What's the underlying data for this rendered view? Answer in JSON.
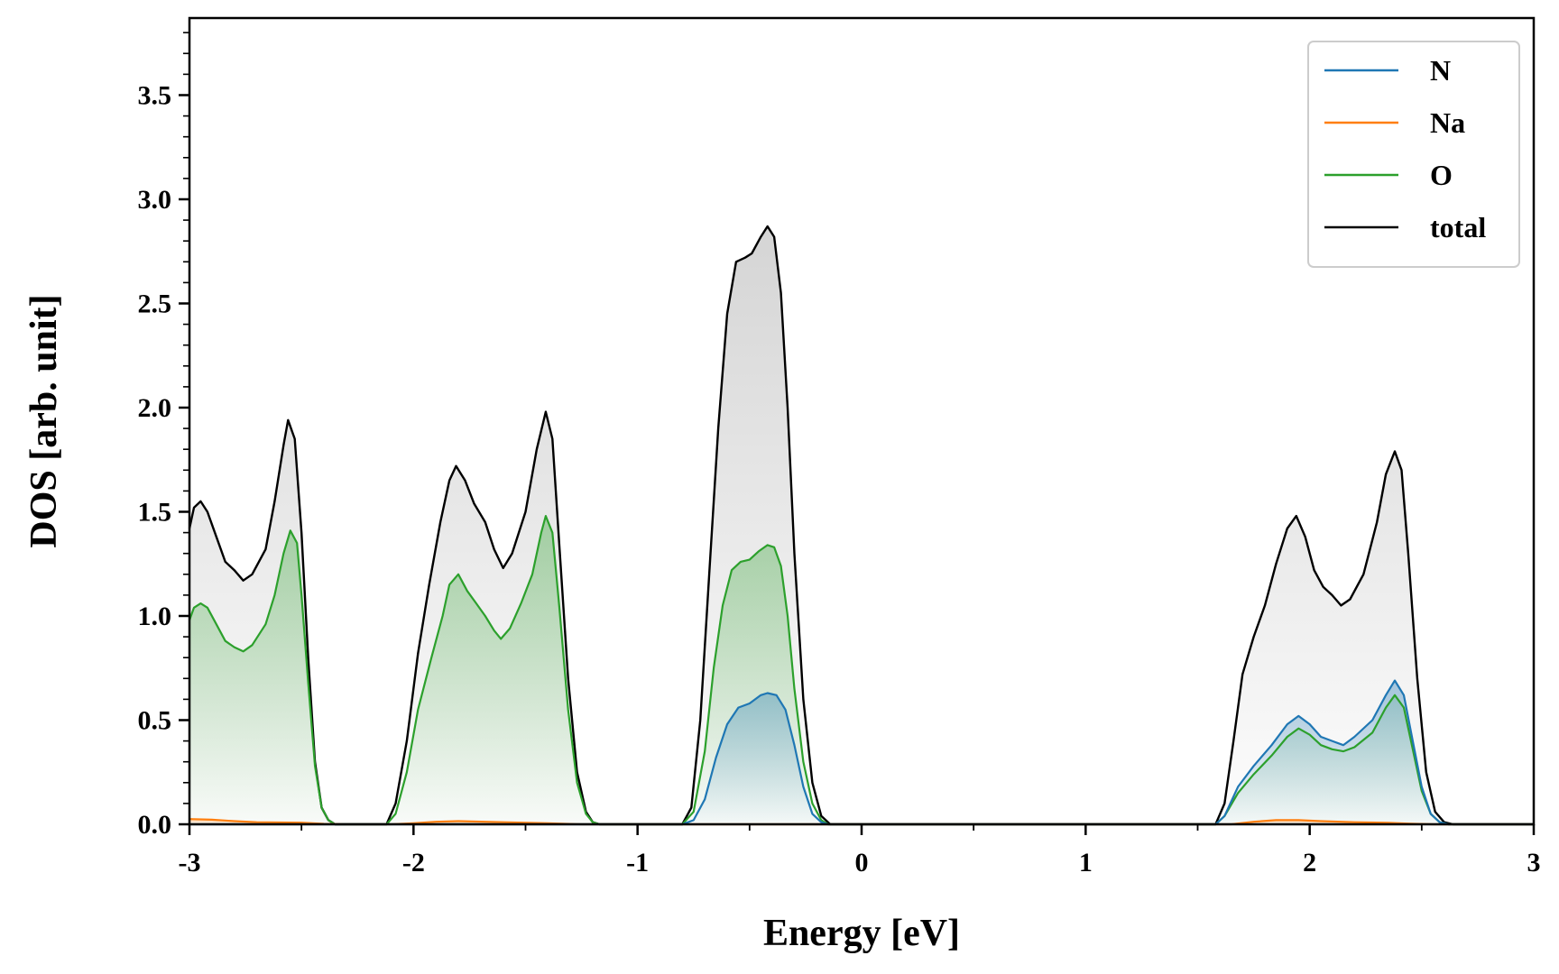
{
  "chart_data": {
    "type": "line",
    "title": "",
    "xlabel": "Energy [eV]",
    "ylabel": "DOS [arb. unit]",
    "xlim": [
      -3,
      3
    ],
    "ylim": [
      0,
      3.87
    ],
    "x_ticks": [
      -3,
      -2,
      -1,
      0,
      1,
      2,
      3
    ],
    "x_tick_labels": [
      "-3",
      "-2",
      "-1",
      "0",
      "1",
      "2",
      "3"
    ],
    "y_ticks": [
      0,
      0.5,
      1,
      1.5,
      2,
      2.5,
      3,
      3.5
    ],
    "y_tick_labels": [
      "0.0",
      "0.5",
      "1.0",
      "1.5",
      "2.0",
      "2.5",
      "3.0",
      "3.5"
    ],
    "grid": false,
    "legend_position": "top-right",
    "fill_under_curves": true,
    "series": [
      {
        "name": "N",
        "color": "#1f77b4",
        "points": [
          [
            -3.0,
            0
          ],
          [
            -0.8,
            0
          ],
          [
            -0.75,
            0.02
          ],
          [
            -0.7,
            0.12
          ],
          [
            -0.65,
            0.32
          ],
          [
            -0.6,
            0.48
          ],
          [
            -0.55,
            0.56
          ],
          [
            -0.5,
            0.58
          ],
          [
            -0.45,
            0.62
          ],
          [
            -0.42,
            0.63
          ],
          [
            -0.38,
            0.62
          ],
          [
            -0.34,
            0.55
          ],
          [
            -0.3,
            0.38
          ],
          [
            -0.26,
            0.18
          ],
          [
            -0.22,
            0.05
          ],
          [
            -0.18,
            0.01
          ],
          [
            -0.15,
            0
          ],
          [
            1.58,
            0
          ],
          [
            1.62,
            0.04
          ],
          [
            1.68,
            0.18
          ],
          [
            1.75,
            0.28
          ],
          [
            1.83,
            0.38
          ],
          [
            1.9,
            0.48
          ],
          [
            1.95,
            0.52
          ],
          [
            2.0,
            0.48
          ],
          [
            2.05,
            0.42
          ],
          [
            2.1,
            0.4
          ],
          [
            2.15,
            0.38
          ],
          [
            2.2,
            0.42
          ],
          [
            2.28,
            0.5
          ],
          [
            2.34,
            0.62
          ],
          [
            2.38,
            0.69
          ],
          [
            2.42,
            0.62
          ],
          [
            2.46,
            0.4
          ],
          [
            2.5,
            0.18
          ],
          [
            2.54,
            0.05
          ],
          [
            2.58,
            0.01
          ],
          [
            2.62,
            0
          ],
          [
            3.0,
            0
          ]
        ]
      },
      {
        "name": "Na",
        "color": "#ff7f0e",
        "points": [
          [
            -3.0,
            0.025
          ],
          [
            -2.9,
            0.022
          ],
          [
            -2.8,
            0.015
          ],
          [
            -2.7,
            0.01
          ],
          [
            -2.5,
            0.008
          ],
          [
            -2.4,
            0.002
          ],
          [
            -2.3,
            0
          ],
          [
            -2.1,
            0
          ],
          [
            -2.0,
            0.005
          ],
          [
            -1.9,
            0.012
          ],
          [
            -1.8,
            0.015
          ],
          [
            -1.6,
            0.01
          ],
          [
            -1.4,
            0.005
          ],
          [
            -1.25,
            0
          ],
          [
            1.65,
            0
          ],
          [
            1.75,
            0.012
          ],
          [
            1.85,
            0.02
          ],
          [
            1.95,
            0.02
          ],
          [
            2.05,
            0.015
          ],
          [
            2.2,
            0.01
          ],
          [
            2.35,
            0.007
          ],
          [
            2.45,
            0.003
          ],
          [
            2.55,
            0
          ],
          [
            3.0,
            0
          ]
        ]
      },
      {
        "name": "O",
        "color": "#2ca02c",
        "points": [
          [
            -3.0,
            0.98
          ],
          [
            -2.98,
            1.04
          ],
          [
            -2.95,
            1.06
          ],
          [
            -2.92,
            1.04
          ],
          [
            -2.88,
            0.96
          ],
          [
            -2.84,
            0.88
          ],
          [
            -2.8,
            0.85
          ],
          [
            -2.76,
            0.83
          ],
          [
            -2.72,
            0.86
          ],
          [
            -2.66,
            0.96
          ],
          [
            -2.62,
            1.1
          ],
          [
            -2.58,
            1.3
          ],
          [
            -2.55,
            1.41
          ],
          [
            -2.52,
            1.35
          ],
          [
            -2.5,
            1.1
          ],
          [
            -2.47,
            0.68
          ],
          [
            -2.44,
            0.28
          ],
          [
            -2.41,
            0.08
          ],
          [
            -2.38,
            0.02
          ],
          [
            -2.35,
            0
          ],
          [
            -2.12,
            0
          ],
          [
            -2.08,
            0.05
          ],
          [
            -2.03,
            0.25
          ],
          [
            -1.98,
            0.55
          ],
          [
            -1.92,
            0.8
          ],
          [
            -1.87,
            1.0
          ],
          [
            -1.84,
            1.15
          ],
          [
            -1.8,
            1.2
          ],
          [
            -1.76,
            1.12
          ],
          [
            -1.72,
            1.06
          ],
          [
            -1.68,
            1.0
          ],
          [
            -1.64,
            0.93
          ],
          [
            -1.61,
            0.89
          ],
          [
            -1.57,
            0.94
          ],
          [
            -1.52,
            1.06
          ],
          [
            -1.47,
            1.2
          ],
          [
            -1.43,
            1.4
          ],
          [
            -1.41,
            1.48
          ],
          [
            -1.38,
            1.4
          ],
          [
            -1.35,
            1.05
          ],
          [
            -1.31,
            0.55
          ],
          [
            -1.27,
            0.2
          ],
          [
            -1.23,
            0.05
          ],
          [
            -1.2,
            0.01
          ],
          [
            -1.17,
            0
          ],
          [
            -0.8,
            0
          ],
          [
            -0.75,
            0.06
          ],
          [
            -0.7,
            0.35
          ],
          [
            -0.66,
            0.75
          ],
          [
            -0.62,
            1.05
          ],
          [
            -0.58,
            1.22
          ],
          [
            -0.54,
            1.26
          ],
          [
            -0.5,
            1.27
          ],
          [
            -0.46,
            1.31
          ],
          [
            -0.42,
            1.34
          ],
          [
            -0.39,
            1.33
          ],
          [
            -0.36,
            1.24
          ],
          [
            -0.33,
            1.0
          ],
          [
            -0.3,
            0.65
          ],
          [
            -0.26,
            0.3
          ],
          [
            -0.22,
            0.1
          ],
          [
            -0.18,
            0.02
          ],
          [
            -0.15,
            0
          ],
          [
            1.58,
            0
          ],
          [
            1.62,
            0.04
          ],
          [
            1.68,
            0.15
          ],
          [
            1.75,
            0.24
          ],
          [
            1.83,
            0.33
          ],
          [
            1.9,
            0.42
          ],
          [
            1.95,
            0.46
          ],
          [
            2.0,
            0.43
          ],
          [
            2.05,
            0.38
          ],
          [
            2.1,
            0.36
          ],
          [
            2.15,
            0.35
          ],
          [
            2.2,
            0.37
          ],
          [
            2.28,
            0.44
          ],
          [
            2.34,
            0.56
          ],
          [
            2.38,
            0.62
          ],
          [
            2.42,
            0.56
          ],
          [
            2.46,
            0.36
          ],
          [
            2.5,
            0.16
          ],
          [
            2.54,
            0.05
          ],
          [
            2.58,
            0.01
          ],
          [
            2.62,
            0
          ],
          [
            3.0,
            0
          ]
        ]
      },
      {
        "name": "total",
        "color": "#000000",
        "points": [
          [
            -3.0,
            1.42
          ],
          [
            -2.98,
            1.52
          ],
          [
            -2.95,
            1.55
          ],
          [
            -2.92,
            1.5
          ],
          [
            -2.88,
            1.38
          ],
          [
            -2.84,
            1.26
          ],
          [
            -2.8,
            1.22
          ],
          [
            -2.76,
            1.17
          ],
          [
            -2.72,
            1.2
          ],
          [
            -2.66,
            1.32
          ],
          [
            -2.62,
            1.55
          ],
          [
            -2.58,
            1.82
          ],
          [
            -2.56,
            1.94
          ],
          [
            -2.53,
            1.85
          ],
          [
            -2.5,
            1.4
          ],
          [
            -2.47,
            0.8
          ],
          [
            -2.44,
            0.3
          ],
          [
            -2.41,
            0.08
          ],
          [
            -2.38,
            0.02
          ],
          [
            -2.35,
            0
          ],
          [
            -2.12,
            0
          ],
          [
            -2.08,
            0.1
          ],
          [
            -2.03,
            0.4
          ],
          [
            -1.98,
            0.82
          ],
          [
            -1.93,
            1.15
          ],
          [
            -1.88,
            1.45
          ],
          [
            -1.84,
            1.65
          ],
          [
            -1.81,
            1.72
          ],
          [
            -1.77,
            1.65
          ],
          [
            -1.73,
            1.54
          ],
          [
            -1.68,
            1.45
          ],
          [
            -1.64,
            1.32
          ],
          [
            -1.6,
            1.23
          ],
          [
            -1.56,
            1.3
          ],
          [
            -1.5,
            1.5
          ],
          [
            -1.45,
            1.8
          ],
          [
            -1.41,
            1.98
          ],
          [
            -1.38,
            1.85
          ],
          [
            -1.35,
            1.35
          ],
          [
            -1.31,
            0.7
          ],
          [
            -1.27,
            0.25
          ],
          [
            -1.23,
            0.06
          ],
          [
            -1.2,
            0.01
          ],
          [
            -1.17,
            0
          ],
          [
            -0.8,
            0
          ],
          [
            -0.76,
            0.08
          ],
          [
            -0.72,
            0.5
          ],
          [
            -0.68,
            1.2
          ],
          [
            -0.64,
            1.9
          ],
          [
            -0.6,
            2.45
          ],
          [
            -0.56,
            2.7
          ],
          [
            -0.52,
            2.72
          ],
          [
            -0.49,
            2.74
          ],
          [
            -0.45,
            2.82
          ],
          [
            -0.42,
            2.87
          ],
          [
            -0.39,
            2.82
          ],
          [
            -0.36,
            2.55
          ],
          [
            -0.33,
            2.0
          ],
          [
            -0.3,
            1.3
          ],
          [
            -0.26,
            0.6
          ],
          [
            -0.22,
            0.2
          ],
          [
            -0.18,
            0.04
          ],
          [
            -0.14,
            0
          ],
          [
            1.58,
            0
          ],
          [
            1.62,
            0.1
          ],
          [
            1.66,
            0.4
          ],
          [
            1.7,
            0.72
          ],
          [
            1.75,
            0.9
          ],
          [
            1.8,
            1.05
          ],
          [
            1.85,
            1.25
          ],
          [
            1.9,
            1.42
          ],
          [
            1.94,
            1.48
          ],
          [
            1.98,
            1.38
          ],
          [
            2.02,
            1.22
          ],
          [
            2.06,
            1.14
          ],
          [
            2.1,
            1.1
          ],
          [
            2.14,
            1.05
          ],
          [
            2.18,
            1.08
          ],
          [
            2.24,
            1.2
          ],
          [
            2.3,
            1.45
          ],
          [
            2.34,
            1.68
          ],
          [
            2.38,
            1.79
          ],
          [
            2.41,
            1.7
          ],
          [
            2.44,
            1.3
          ],
          [
            2.48,
            0.7
          ],
          [
            2.52,
            0.25
          ],
          [
            2.56,
            0.06
          ],
          [
            2.6,
            0.01
          ],
          [
            2.64,
            0
          ],
          [
            3.0,
            0
          ]
        ]
      }
    ]
  }
}
